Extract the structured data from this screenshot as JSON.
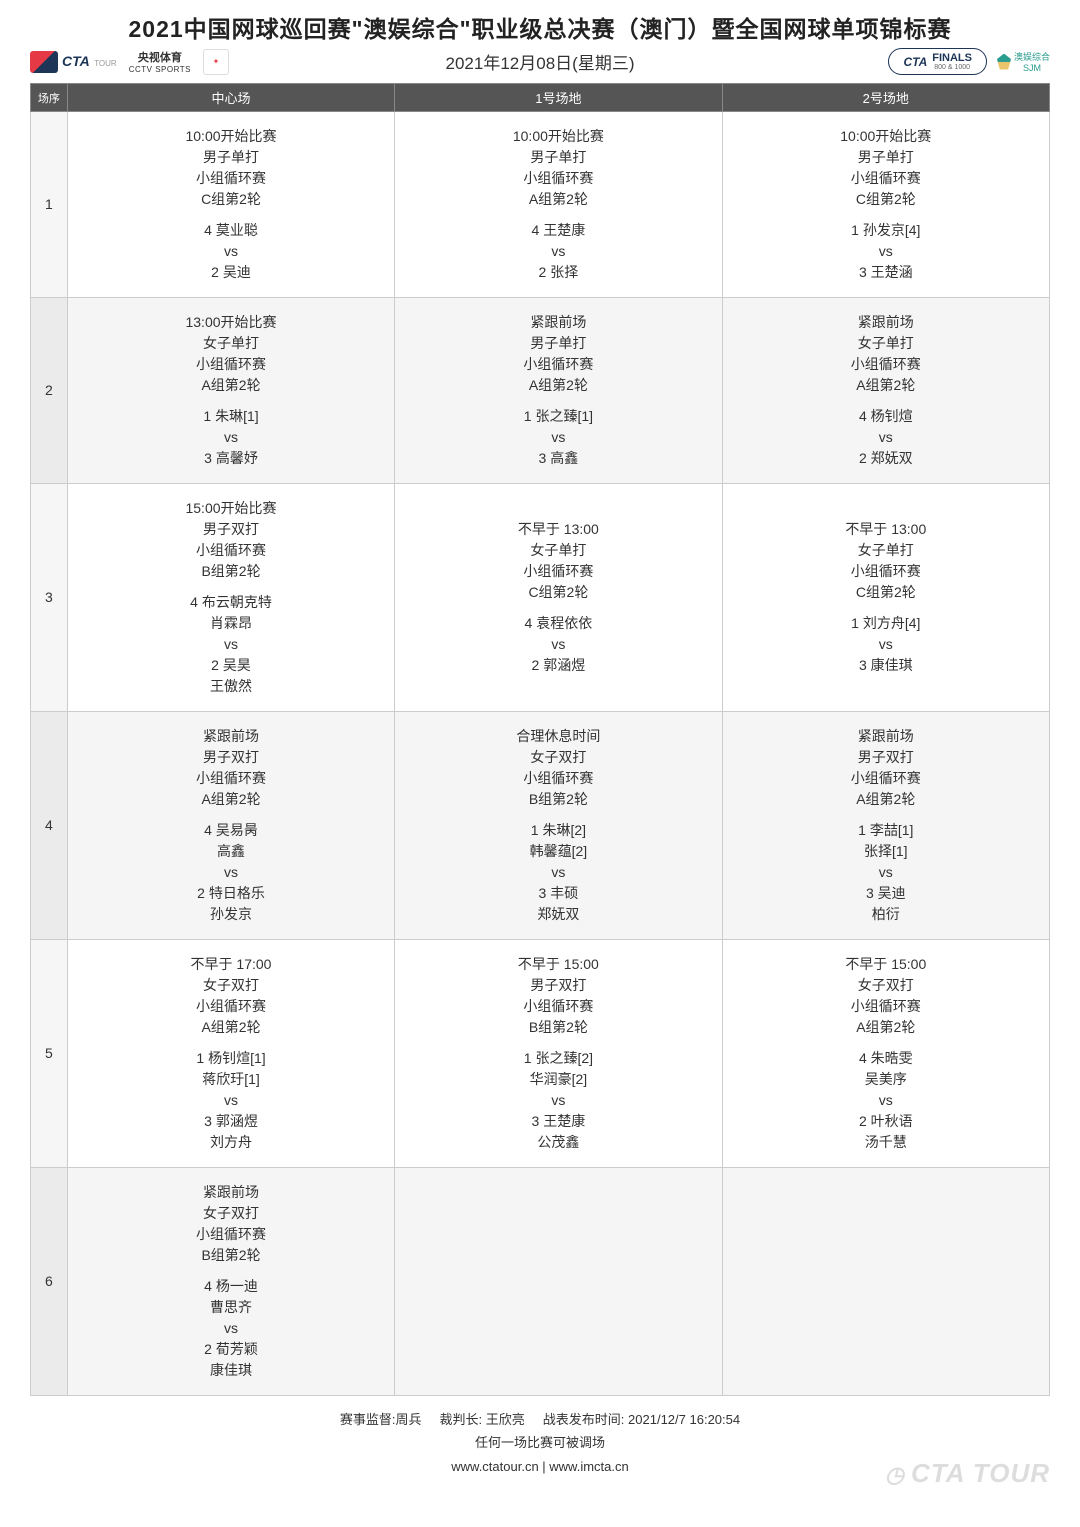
{
  "header": {
    "title": "2021中国网球巡回赛\"澳娱综合\"职业级总决赛（澳门）暨全国网球单项锦标赛",
    "date": "2021年12月08日(星期三)",
    "cta_text": "CTA",
    "cta_tour": "TOUR",
    "cctv_top": "央视体育",
    "cctv_bottom": "CCTV SPORTS",
    "finals_brand": "CTA",
    "finals_label": "FINALS",
    "finals_sub": "800 & 1000",
    "sjm_top": "澳娱综合",
    "sjm_bottom": "SJM"
  },
  "columns": {
    "order": "场序",
    "center": "中心场",
    "court1": "1号场地",
    "court2": "2号场地"
  },
  "rows": [
    {
      "num": "1",
      "center": {
        "time": "10:00开始比赛",
        "cat": "男子单打",
        "type": "小组循环赛",
        "group": "C组第2轮",
        "p1": "4 莫业聪",
        "vs": "vs",
        "p2": "2 吴迪"
      },
      "court1": {
        "time": "10:00开始比赛",
        "cat": "男子单打",
        "type": "小组循环赛",
        "group": "A组第2轮",
        "p1": "4 王楚康",
        "vs": "vs",
        "p2": "2 张择"
      },
      "court2": {
        "time": "10:00开始比赛",
        "cat": "男子单打",
        "type": "小组循环赛",
        "group": "C组第2轮",
        "p1": "1 孙发京[4]",
        "vs": "vs",
        "p2": "3 王楚涵"
      }
    },
    {
      "num": "2",
      "center": {
        "time": "13:00开始比赛",
        "cat": "女子单打",
        "type": "小组循环赛",
        "group": "A组第2轮",
        "p1": "1 朱琳[1]",
        "vs": "vs",
        "p2": "3 高馨妤"
      },
      "court1": {
        "time": "紧跟前场",
        "cat": "男子单打",
        "type": "小组循环赛",
        "group": "A组第2轮",
        "p1": "1 张之臻[1]",
        "vs": "vs",
        "p2": "3 高鑫"
      },
      "court2": {
        "time": "紧跟前场",
        "cat": "女子单打",
        "type": "小组循环赛",
        "group": "A组第2轮",
        "p1": "4 杨钊煊",
        "vs": "vs",
        "p2": "2 郑妩双"
      }
    },
    {
      "num": "3",
      "center": {
        "time": "15:00开始比赛",
        "cat": "男子双打",
        "type": "小组循环赛",
        "group": "B组第2轮",
        "p1": "4 布云朝克特",
        "p1b": "肖霖昂",
        "vs": "vs",
        "p2": "2 吴昊",
        "p2b": "王傲然"
      },
      "court1": {
        "time": "不早于 13:00",
        "cat": "女子单打",
        "type": "小组循环赛",
        "group": "C组第2轮",
        "p1": "4 袁程依依",
        "vs": "vs",
        "p2": "2 郭涵煜"
      },
      "court2": {
        "time": "不早于 13:00",
        "cat": "女子单打",
        "type": "小组循环赛",
        "group": "C组第2轮",
        "p1": "1 刘方舟[4]",
        "vs": "vs",
        "p2": "3 康佳琪"
      }
    },
    {
      "num": "4",
      "center": {
        "time": "紧跟前场",
        "cat": "男子双打",
        "type": "小组循环赛",
        "group": "A组第2轮",
        "p1": "4 吴易昺",
        "p1b": "高鑫",
        "vs": "vs",
        "p2": "2 特日格乐",
        "p2b": "孙发京"
      },
      "court1": {
        "time": "合理休息时间",
        "cat": "女子双打",
        "type": "小组循环赛",
        "group": "B组第2轮",
        "p1": "1 朱琳[2]",
        "p1b": "韩馨蕴[2]",
        "vs": "vs",
        "p2": "3 丰硕",
        "p2b": "郑妩双"
      },
      "court2": {
        "time": "紧跟前场",
        "cat": "男子双打",
        "type": "小组循环赛",
        "group": "A组第2轮",
        "p1": "1 李喆[1]",
        "p1b": "张择[1]",
        "vs": "vs",
        "p2": "3 吴迪",
        "p2b": "柏衍"
      }
    },
    {
      "num": "5",
      "center": {
        "time": "不早于 17:00",
        "cat": "女子双打",
        "type": "小组循环赛",
        "group": "A组第2轮",
        "p1": "1 杨钊煊[1]",
        "p1b": "蒋欣玗[1]",
        "vs": "vs",
        "p2": "3 郭涵煜",
        "p2b": "刘方舟"
      },
      "court1": {
        "time": "不早于 15:00",
        "cat": "男子双打",
        "type": "小组循环赛",
        "group": "B组第2轮",
        "p1": "1 张之臻[2]",
        "p1b": "华润豪[2]",
        "vs": "vs",
        "p2": "3 王楚康",
        "p2b": "公茂鑫"
      },
      "court2": {
        "time": "不早于 15:00",
        "cat": "女子双打",
        "type": "小组循环赛",
        "group": "A组第2轮",
        "p1": "4 朱晧雯",
        "p1b": "吴美序",
        "vs": "vs",
        "p2": "2 叶秋语",
        "p2b": "汤千慧"
      }
    },
    {
      "num": "6",
      "center": {
        "time": "紧跟前场",
        "cat": "女子双打",
        "type": "小组循环赛",
        "group": "B组第2轮",
        "p1": "4 杨一迪",
        "p1b": "曹思齐",
        "vs": "vs",
        "p2": "2 荀芳颖",
        "p2b": "康佳琪"
      },
      "court1": null,
      "court2": null
    }
  ],
  "footer": {
    "supervisor_label": "赛事监督:",
    "supervisor": "周兵",
    "referee_label": "裁判长:",
    "referee": "王欣亮",
    "publish_label": "战表发布时间:",
    "publish_time": "2021/12/7 16:20:54",
    "notice": "任何一场比赛可被调场",
    "websites": "www.ctatour.cn | www.imcta.cn"
  },
  "watermark": "CTA TOUR"
}
